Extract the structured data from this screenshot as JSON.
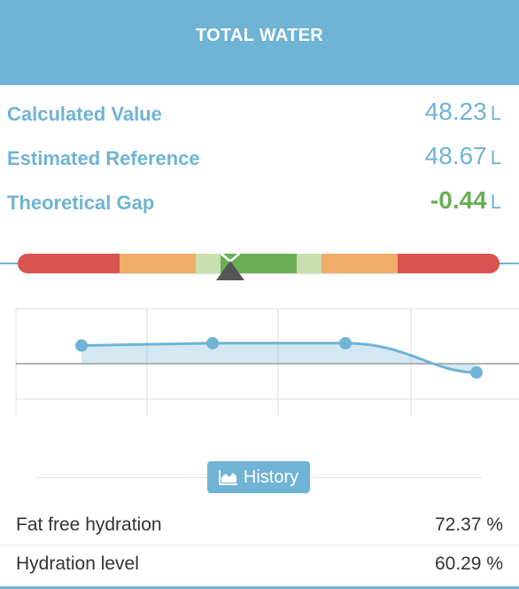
{
  "header": {
    "title": "TOTAL WATER"
  },
  "metrics": [
    {
      "label": "Calculated Value",
      "value": "48.23",
      "unit": "L"
    },
    {
      "label": "Estimated Reference",
      "value": "48.67",
      "unit": "L"
    },
    {
      "label": "Theoretical Gap",
      "value": "-0.44",
      "unit": "L"
    }
  ],
  "colors": {
    "accent": "#6fb3d5",
    "positive": "#6aae56",
    "gauge_red": "#d9534f",
    "gauge_orange": "#f0ad6a",
    "gauge_lightgreen": "#c9dfae",
    "gauge_green": "#6aae56"
  },
  "gauge": {
    "marker_fraction": 0.44
  },
  "history_chart": {
    "points": [
      0.62,
      0.7,
      0.7,
      -0.3
    ]
  },
  "history_button": {
    "label": "History",
    "icon": "area-chart-icon"
  },
  "details": [
    {
      "label": "Fat free hydration",
      "value": "72.37 %"
    },
    {
      "label": "Hydration level",
      "value": "60.29 %"
    }
  ]
}
